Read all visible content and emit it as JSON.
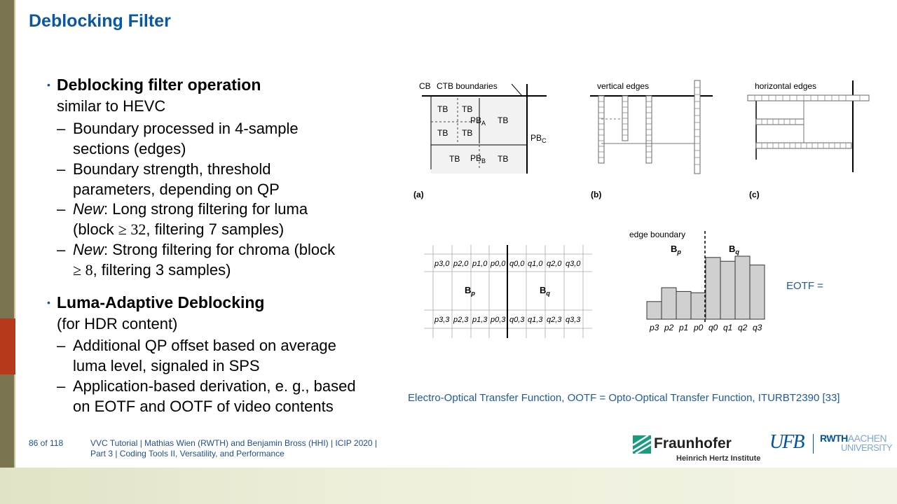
{
  "slide": {
    "title": "Deblocking Filter",
    "bullets": [
      {
        "heading": "Deblocking filter operation",
        "heading_sub": "similar to HEVC",
        "items": [
          [
            "Boundary processed in 4-sample",
            "sections (edges)"
          ],
          [
            "Boundary strength, threshold",
            "parameters, depending on QP"
          ],
          [
            "New",
            ": Long strong filtering for luma",
            "(block ",
            "≥ 32",
            ", filtering 7 samples)"
          ],
          [
            "New",
            ": Strong filtering for chroma (block",
            "≥ 8",
            ", filtering 3 samples)"
          ]
        ]
      },
      {
        "heading": "Luma-Adaptive Deblocking",
        "heading_sub": "(for HDR content)",
        "items": [
          [
            "Additional QP offset based on average",
            "luma level, signaled in SPS"
          ],
          [
            "Application-based derivation, e. g., based",
            "on EOTF and OOTF of video contents"
          ]
        ]
      }
    ],
    "dash": "–",
    "caption": "Electro-Optical Transfer Function, OOTF = Opto-Optical Transfer Function, ITURBT2390 [33]",
    "eotf_label": "EOTF ="
  },
  "figure_top": {
    "a": {
      "cb_label": "CB",
      "ctb_label": "CTB boundaries",
      "tb": "TB",
      "pba": "PB",
      "pba_sub": "A",
      "pbb": "PB",
      "pbb_sub": "B",
      "pbc": "PB",
      "pbc_sub": "C",
      "caption": "(a)"
    },
    "b": {
      "label": "vertical edges",
      "caption": "(b)"
    },
    "c": {
      "label": "horizontal edges",
      "caption": "(c)"
    }
  },
  "figure_bottom": {
    "grid_top_row": [
      "p3,0",
      "p2,0",
      "p1,0",
      "p0,0",
      "q0,0",
      "q1,0",
      "q2,0",
      "q3,0"
    ],
    "grid_bottom_row": [
      "p3,3",
      "p2,3",
      "p1,3",
      "p0,3",
      "q0,3",
      "q1,3",
      "q2,3",
      "q3,3"
    ],
    "bp": "B",
    "bp_sub": "p",
    "bq": "B",
    "bq_sub": "q",
    "edge_boundary": "edge boundary",
    "bar_labels": [
      "p3",
      "p2",
      "p1",
      "p0",
      "q0",
      "q1",
      "q2",
      "q3"
    ],
    "bar_values": [
      0.28,
      0.5,
      0.44,
      0.42,
      0.98,
      0.92,
      1.0,
      0.86
    ]
  },
  "footer": {
    "page": "86 of 118",
    "line1": "VVC Tutorial  |  Mathias Wien (RWTH) and Benjamin Bross (HHI)  |  ICIP 2020  |",
    "line2": "Part 3  |  Coding Tools II, Versatility, and Performance",
    "fraunhofer": "Fraunhofer",
    "hhi": "Heinrich Hertz Institute",
    "rwth1": "RWTH",
    "rwth2": "AACHEN",
    "rwth3": "UNIVERSITY",
    "ufb": "UFB"
  },
  "colors": {
    "title": "#0a58a0",
    "accent_red": "#b7391c",
    "band": "#7a7450",
    "bar": "#d0d0d0",
    "fraunhofer_green": "#179c7d",
    "rwth_blue": "#00549f"
  }
}
